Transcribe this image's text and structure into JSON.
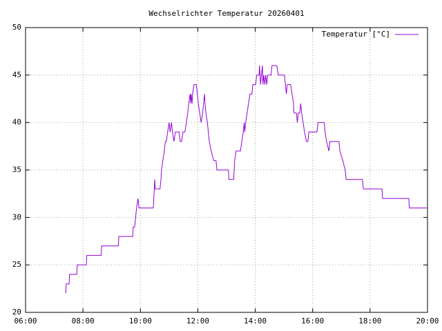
{
  "chart_data": {
    "type": "line",
    "title": "Wechselrichter Temperatur 20260401",
    "x": [
      "07:24",
      "07:25",
      "07:31",
      "07:32",
      "07:47",
      "07:48",
      "08:07",
      "08:08",
      "08:38",
      "08:39",
      "09:14",
      "09:15",
      "09:44",
      "09:45",
      "09:48",
      "09:50",
      "09:52",
      "09:55",
      "09:57",
      "10:00",
      "10:27",
      "10:29",
      "10:30",
      "10:31",
      "10:41",
      "10:43",
      "10:44",
      "10:47",
      "10:50",
      "10:52",
      "10:54",
      "10:57",
      "11:00",
      "11:02",
      "11:05",
      "11:07",
      "11:10",
      "11:13",
      "11:21",
      "11:23",
      "11:26",
      "11:29",
      "11:33",
      "11:36",
      "11:39",
      "11:41",
      "11:44",
      "11:45",
      "11:46",
      "11:48",
      "11:49",
      "11:52",
      "11:57",
      "11:59",
      "12:01",
      "12:04",
      "12:07",
      "12:10",
      "12:12",
      "12:14",
      "12:15",
      "12:17",
      "12:20",
      "12:22",
      "12:24",
      "12:28",
      "12:33",
      "12:38",
      "12:40",
      "13:04",
      "13:05",
      "13:15",
      "13:16",
      "13:17",
      "13:20",
      "13:29",
      "13:32",
      "13:35",
      "13:37",
      "13:38",
      "13:40",
      "13:43",
      "13:46",
      "13:49",
      "13:53",
      "13:55",
      "14:01",
      "14:03",
      "14:08",
      "14:09",
      "14:11",
      "14:13",
      "14:15",
      "14:16",
      "14:18",
      "14:20",
      "14:22",
      "14:24",
      "14:26",
      "14:33",
      "14:35",
      "14:45",
      "14:48",
      "15:01",
      "15:03",
      "15:05",
      "15:07",
      "15:14",
      "15:17",
      "15:20",
      "15:21",
      "15:26",
      "15:28",
      "15:30",
      "15:33",
      "15:35",
      "15:37",
      "15:40",
      "15:43",
      "15:47",
      "15:50",
      "15:52",
      "16:09",
      "16:11",
      "16:24",
      "16:26",
      "16:29",
      "16:34",
      "16:36",
      "16:55",
      "16:57",
      "17:03",
      "17:08",
      "17:10",
      "17:44",
      "17:46",
      "18:25",
      "18:26",
      "19:21",
      "19:22",
      "20:00"
    ],
    "series": [
      {
        "name": "Temperatur [°C]",
        "color": "#9400d3",
        "values": [
          22,
          23,
          23,
          24,
          24,
          25,
          25,
          26,
          26,
          27,
          27,
          28,
          28,
          29,
          29,
          30,
          31,
          32,
          31,
          31,
          31,
          33,
          34,
          33,
          33,
          34,
          35,
          36,
          37,
          38,
          38,
          39,
          40,
          39,
          40,
          39,
          38,
          39,
          39,
          38,
          38,
          39,
          39,
          40,
          41,
          42,
          43,
          42,
          43,
          42,
          43,
          44,
          44,
          43,
          42,
          41,
          40,
          41,
          42,
          43,
          42,
          41,
          40,
          39,
          38,
          37,
          36,
          36,
          35,
          35,
          34,
          34,
          35,
          36,
          37,
          37,
          38,
          39,
          40,
          39,
          40,
          41,
          42,
          43,
          43,
          44,
          44,
          45,
          45,
          46,
          44,
          45,
          46,
          44,
          45,
          44,
          45,
          44,
          45,
          45,
          46,
          46,
          45,
          45,
          44,
          43,
          44,
          44,
          43,
          42,
          41,
          41,
          40,
          41,
          41,
          42,
          41,
          40,
          39,
          38,
          38,
          39,
          39,
          40,
          40,
          39,
          38,
          37,
          38,
          38,
          37,
          36,
          35,
          34,
          34,
          33,
          33,
          32,
          32,
          31,
          31
        ]
      }
    ],
    "xlim": [
      "06:00",
      "20:00"
    ],
    "xticks": [
      "06:00",
      "08:00",
      "10:00",
      "12:00",
      "14:00",
      "16:00",
      "18:00",
      "20:00"
    ],
    "ylim": [
      20,
      50
    ],
    "yticks": [
      20,
      25,
      30,
      35,
      40,
      45,
      50
    ],
    "grid": true,
    "legend": "top-right"
  }
}
